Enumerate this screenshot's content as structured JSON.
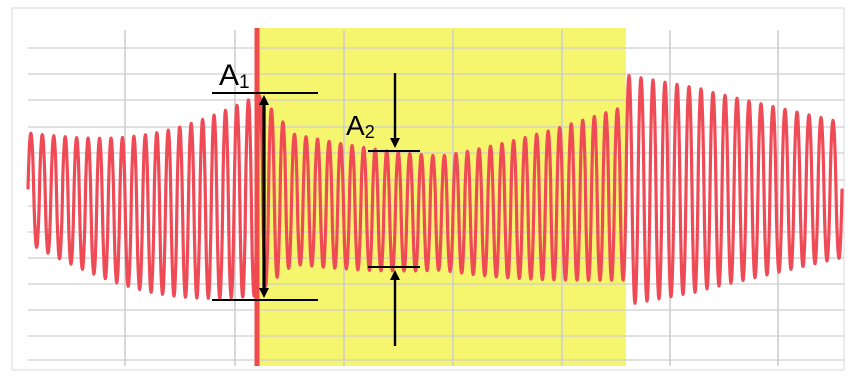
{
  "labels": {
    "a1_main": "A",
    "a1_sub": "1",
    "a2_main": "A",
    "a2_sub": "2"
  },
  "colors": {
    "background": "#ffffff",
    "frame": "#d9d9d9",
    "grid": "#cfcfcf",
    "highlight": "#f6f56e",
    "marker": "#f04a4a",
    "waveform": "#ef4b57",
    "annotation": "#000000"
  },
  "waveform": {
    "description_free": true,
    "pre_segment_cycles": 20,
    "highlight_segment_cycles": 32,
    "post_segment_cycles": 18
  },
  "icons": {
    "arrow_double": "double-arrow-icon",
    "arrow_down": "arrow-down-icon",
    "arrow_up": "arrow-up-icon"
  }
}
